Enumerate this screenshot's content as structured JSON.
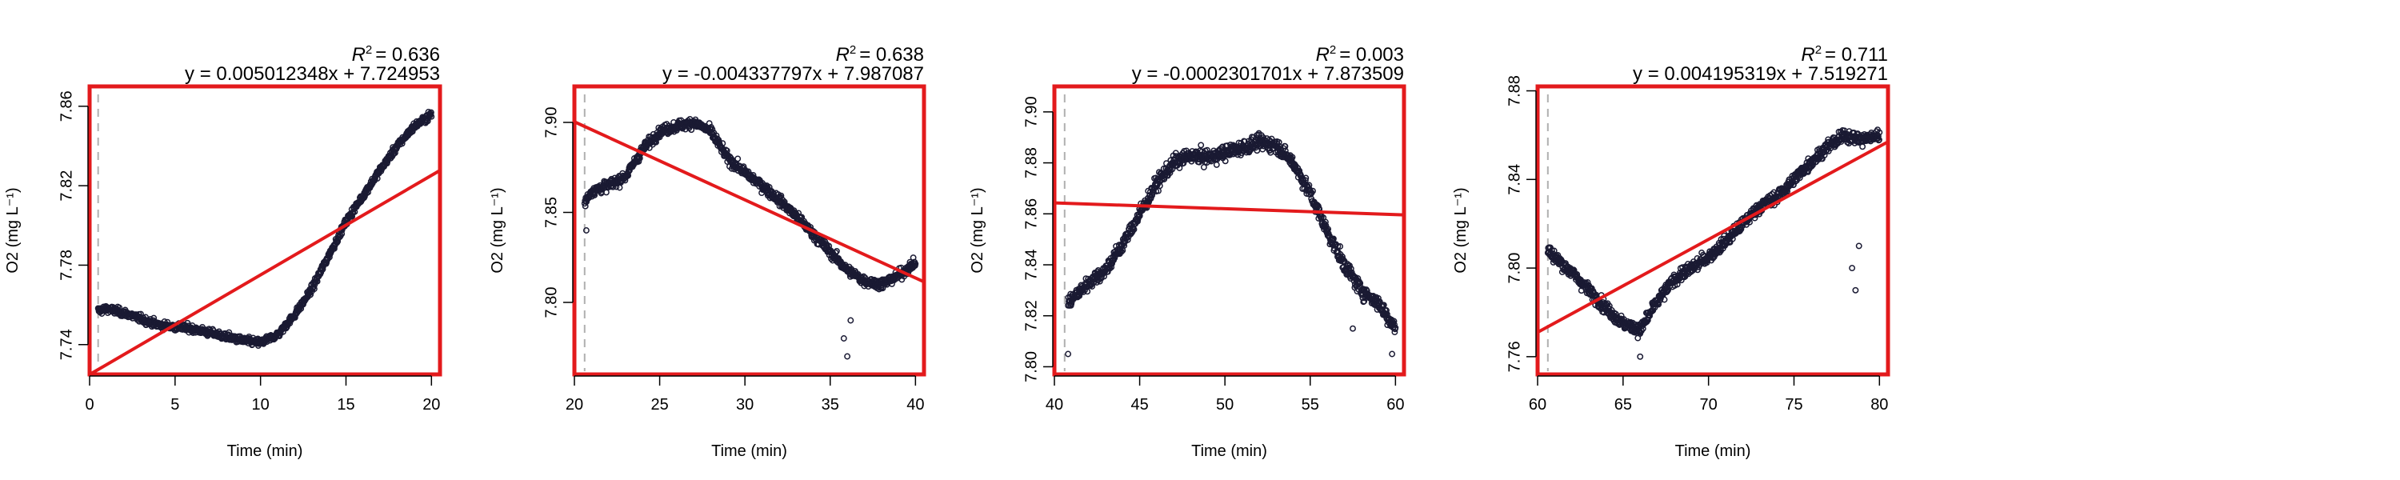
{
  "chart_data": [
    {
      "type": "scatter",
      "xlabel": "Time (min)",
      "ylabel": "O2 (mg L⁻¹)",
      "xlim": [
        0,
        20.5
      ],
      "ylim": [
        7.725,
        7.87
      ],
      "xticks": [
        0,
        5,
        10,
        15,
        20
      ],
      "yticks": [
        7.74,
        7.78,
        7.82,
        7.86
      ],
      "vline_x": 0.5,
      "r2_label": "R",
      "r2_value": "= 0.636",
      "equation": "y = 0.005012348x + 7.724953",
      "fit": {
        "slope": 0.005012348,
        "intercept": 7.724953
      },
      "profile": [
        [
          0.5,
          7.757
        ],
        [
          1,
          7.758
        ],
        [
          2,
          7.756
        ],
        [
          3,
          7.753
        ],
        [
          4,
          7.75
        ],
        [
          5,
          7.749
        ],
        [
          6,
          7.748
        ],
        [
          7,
          7.746
        ],
        [
          8,
          7.744
        ],
        [
          9,
          7.742
        ],
        [
          10,
          7.741
        ],
        [
          11,
          7.745
        ],
        [
          12,
          7.755
        ],
        [
          13,
          7.768
        ],
        [
          14,
          7.785
        ],
        [
          15,
          7.802
        ],
        [
          16,
          7.815
        ],
        [
          17,
          7.828
        ],
        [
          18,
          7.84
        ],
        [
          19,
          7.85
        ],
        [
          20,
          7.856
        ]
      ],
      "noise": 0.004,
      "outliers": []
    },
    {
      "type": "scatter",
      "xlabel": "Time (min)",
      "ylabel": "O2 (mg L⁻¹)",
      "xlim": [
        20,
        40.5
      ],
      "ylim": [
        7.76,
        7.92
      ],
      "xticks": [
        20,
        25,
        30,
        35,
        40
      ],
      "yticks": [
        7.8,
        7.85,
        7.9
      ],
      "vline_x": 20.6,
      "r2_label": "R",
      "r2_value": "= 0.638",
      "equation": "y = -0.004337797x + 7.987087",
      "fit": {
        "slope": -0.004337797,
        "intercept": 7.987087
      },
      "profile": [
        [
          20.6,
          7.855
        ],
        [
          21,
          7.862
        ],
        [
          22,
          7.865
        ],
        [
          23,
          7.87
        ],
        [
          24,
          7.885
        ],
        [
          25,
          7.895
        ],
        [
          26,
          7.898
        ],
        [
          27,
          7.9
        ],
        [
          28,
          7.895
        ],
        [
          29,
          7.88
        ],
        [
          30,
          7.872
        ],
        [
          31,
          7.865
        ],
        [
          32,
          7.857
        ],
        [
          33,
          7.848
        ],
        [
          34,
          7.838
        ],
        [
          35,
          7.828
        ],
        [
          36,
          7.818
        ],
        [
          37,
          7.812
        ],
        [
          38,
          7.81
        ],
        [
          39,
          7.815
        ],
        [
          40,
          7.822
        ]
      ],
      "noise": 0.006,
      "outliers": [
        [
          35.8,
          7.78
        ],
        [
          36.0,
          7.77
        ],
        [
          36.2,
          7.79
        ],
        [
          20.7,
          7.84
        ]
      ]
    },
    {
      "type": "scatter",
      "xlabel": "Time (min)",
      "ylabel": "O2 (mg L⁻¹)",
      "xlim": [
        40,
        60.5
      ],
      "ylim": [
        7.797,
        7.91
      ],
      "xticks": [
        40,
        45,
        50,
        55,
        60
      ],
      "yticks": [
        7.8,
        7.82,
        7.84,
        7.86,
        7.88,
        7.9
      ],
      "vline_x": 40.6,
      "r2_label": "R",
      "r2_value": "= 0.003",
      "equation": "y = -0.0002301701x + 7.873509",
      "fit": {
        "slope": -0.0002301701,
        "intercept": 7.873509
      },
      "profile": [
        [
          40.8,
          7.825
        ],
        [
          42,
          7.833
        ],
        [
          43,
          7.838
        ],
        [
          44,
          7.848
        ],
        [
          45,
          7.86
        ],
        [
          46,
          7.872
        ],
        [
          47,
          7.88
        ],
        [
          48,
          7.883
        ],
        [
          49,
          7.882
        ],
        [
          50,
          7.884
        ],
        [
          51,
          7.886
        ],
        [
          52,
          7.888
        ],
        [
          53,
          7.887
        ],
        [
          54,
          7.88
        ],
        [
          55,
          7.868
        ],
        [
          56,
          7.853
        ],
        [
          57,
          7.84
        ],
        [
          58,
          7.83
        ],
        [
          59,
          7.825
        ],
        [
          60,
          7.815
        ]
      ],
      "noise": 0.006,
      "outliers": [
        [
          40.8,
          7.805
        ],
        [
          57.5,
          7.815
        ],
        [
          59.8,
          7.805
        ]
      ]
    },
    {
      "type": "scatter",
      "xlabel": "Time (min)",
      "ylabel": "O2 (mg L⁻¹)",
      "xlim": [
        60,
        80.5
      ],
      "ylim": [
        7.752,
        7.882
      ],
      "xticks": [
        60,
        65,
        70,
        75,
        80
      ],
      "yticks": [
        7.76,
        7.8,
        7.84,
        7.88
      ],
      "vline_x": 60.6,
      "r2_label": "R",
      "r2_value": "= 0.711",
      "equation": "y = 0.004195319x + 7.519271",
      "fit": {
        "slope": 0.004195319,
        "intercept": 7.519271
      },
      "profile": [
        [
          60.6,
          7.808
        ],
        [
          61,
          7.805
        ],
        [
          62,
          7.798
        ],
        [
          63,
          7.79
        ],
        [
          64,
          7.782
        ],
        [
          65,
          7.775
        ],
        [
          66,
          7.772
        ],
        [
          67,
          7.785
        ],
        [
          68,
          7.795
        ],
        [
          69,
          7.8
        ],
        [
          70,
          7.805
        ],
        [
          71,
          7.812
        ],
        [
          72,
          7.82
        ],
        [
          73,
          7.828
        ],
        [
          74,
          7.832
        ],
        [
          75,
          7.84
        ],
        [
          76,
          7.848
        ],
        [
          77,
          7.855
        ],
        [
          78,
          7.86
        ],
        [
          79,
          7.858
        ],
        [
          80,
          7.86
        ]
      ],
      "noise": 0.006,
      "outliers": [
        [
          78.4,
          7.8
        ],
        [
          78.6,
          7.79
        ],
        [
          78.8,
          7.81
        ],
        [
          66,
          7.76
        ]
      ]
    }
  ]
}
